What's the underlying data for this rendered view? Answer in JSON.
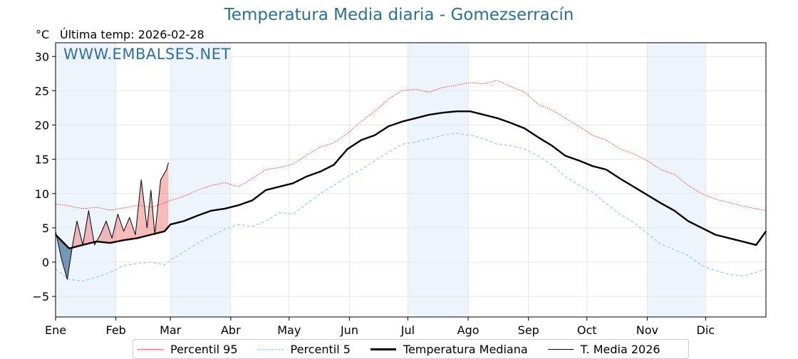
{
  "header": {
    "title": "Temperatura Media diaria - Gomezserracín",
    "unit": "°C",
    "last_temp": "Última temp: 2026-02-28",
    "watermark": "WWW.EMBALSES.NET"
  },
  "legend": {
    "p95": "Percentil 95",
    "p5": "Percentil 5",
    "median": "Temperatura Mediana",
    "current": "T. Media 2026"
  },
  "colors": {
    "p95": "#e53030",
    "p5": "#9ccfe3",
    "median": "#000000",
    "current": "#000000",
    "above_fill": "#f08080",
    "below_fill": "#4a7aa0",
    "band_light": "#eef4fb"
  },
  "chart_data": {
    "type": "line",
    "xlabel": "",
    "ylabel": "°C",
    "ylim": [
      -8,
      32
    ],
    "y_ticks": [
      -5,
      0,
      5,
      10,
      15,
      20,
      25,
      30
    ],
    "x_ticks": [
      {
        "label": "Ene",
        "day": 1
      },
      {
        "label": "Feb",
        "day": 32
      },
      {
        "label": "Mar",
        "day": 60
      },
      {
        "label": "Abr",
        "day": 91
      },
      {
        "label": "May",
        "day": 121
      },
      {
        "label": "Jun",
        "day": 152
      },
      {
        "label": "Jul",
        "day": 182
      },
      {
        "label": "Ago",
        "day": 213
      },
      {
        "label": "Sep",
        "day": 244
      },
      {
        "label": "Oct",
        "day": 274
      },
      {
        "label": "Nov",
        "day": 305
      },
      {
        "label": "Dic",
        "day": 335
      }
    ],
    "x_range": [
      1,
      366
    ],
    "grid": true,
    "shaded_months": [
      "Ene",
      "Mar",
      "Jul",
      "Nov"
    ],
    "series": [
      {
        "name": "Percentil 95",
        "style": "dotted",
        "x": [
          1,
          8,
          15,
          22,
          29,
          36,
          43,
          50,
          57,
          60,
          67,
          74,
          81,
          88,
          95,
          102,
          109,
          116,
          123,
          130,
          137,
          144,
          151,
          158,
          165,
          172,
          179,
          186,
          193,
          200,
          207,
          214,
          221,
          228,
          235,
          242,
          249,
          256,
          263,
          270,
          277,
          284,
          291,
          298,
          305,
          312,
          319,
          326,
          333,
          340,
          347,
          354,
          361,
          366
        ],
        "y": [
          8.5,
          8.2,
          7.8,
          8.0,
          7.6,
          7.9,
          8.3,
          8.0,
          8.6,
          9.0,
          9.6,
          10.5,
          11.2,
          11.6,
          11.0,
          12.2,
          13.5,
          13.8,
          14.3,
          15.6,
          16.8,
          17.4,
          18.8,
          20.5,
          22.0,
          23.8,
          25.0,
          25.2,
          24.8,
          25.5,
          25.8,
          26.2,
          26.0,
          26.5,
          25.6,
          24.8,
          23.0,
          22.2,
          21.0,
          19.8,
          18.5,
          17.8,
          16.5,
          15.8,
          14.8,
          13.5,
          12.8,
          11.2,
          10.0,
          9.2,
          8.7,
          8.2,
          7.8,
          7.5
        ]
      },
      {
        "name": "Percentil 5",
        "style": "dashed",
        "x": [
          1,
          8,
          15,
          22,
          29,
          36,
          43,
          50,
          57,
          60,
          67,
          74,
          81,
          88,
          95,
          102,
          109,
          116,
          123,
          130,
          137,
          144,
          151,
          158,
          165,
          172,
          179,
          186,
          193,
          200,
          207,
          214,
          221,
          228,
          235,
          242,
          249,
          256,
          263,
          270,
          277,
          284,
          291,
          298,
          305,
          312,
          319,
          326,
          333,
          340,
          347,
          354,
          361,
          366
        ],
        "y": [
          -1.0,
          -2.5,
          -2.8,
          -2.2,
          -1.5,
          -0.5,
          -0.2,
          0.0,
          -0.4,
          0.3,
          1.5,
          2.8,
          3.8,
          4.8,
          5.5,
          5.2,
          6.0,
          7.2,
          7.0,
          8.5,
          10.0,
          11.2,
          12.5,
          13.5,
          14.8,
          16.0,
          17.2,
          17.5,
          18.0,
          18.5,
          18.8,
          18.5,
          18.0,
          17.2,
          17.0,
          16.5,
          15.5,
          14.2,
          12.5,
          11.2,
          10.2,
          8.5,
          7.0,
          5.8,
          4.2,
          2.6,
          1.8,
          1.0,
          -0.5,
          -1.2,
          -1.8,
          -2.0,
          -1.5,
          -1.0
        ]
      },
      {
        "name": "Temperatura Mediana",
        "style": "solid-thick",
        "x": [
          1,
          8,
          15,
          22,
          29,
          36,
          43,
          50,
          57,
          60,
          67,
          74,
          81,
          88,
          95,
          102,
          109,
          116,
          123,
          130,
          137,
          144,
          151,
          158,
          165,
          172,
          179,
          186,
          193,
          200,
          207,
          214,
          221,
          228,
          235,
          242,
          249,
          256,
          263,
          270,
          277,
          284,
          291,
          298,
          305,
          312,
          319,
          326,
          333,
          340,
          347,
          354,
          361,
          366
        ],
        "y": [
          4.0,
          2.0,
          2.5,
          3.0,
          2.8,
          3.2,
          3.5,
          4.0,
          4.5,
          5.5,
          6.0,
          6.8,
          7.5,
          7.8,
          8.3,
          9.0,
          10.5,
          11.0,
          11.5,
          12.5,
          13.2,
          14.2,
          16.5,
          17.8,
          18.5,
          19.8,
          20.5,
          21.0,
          21.5,
          21.8,
          22.0,
          22.0,
          21.5,
          21.0,
          20.3,
          19.5,
          18.2,
          17.0,
          15.5,
          14.8,
          14.0,
          13.5,
          12.2,
          11.0,
          9.8,
          8.6,
          7.5,
          6.0,
          5.0,
          4.0,
          3.5,
          3.0,
          2.5,
          4.5
        ]
      },
      {
        "name": "T. Media 2026",
        "style": "solid-thin",
        "x": [
          1,
          4,
          7,
          10,
          12,
          15,
          18,
          21,
          24,
          27,
          30,
          33,
          36,
          39,
          42,
          45,
          48,
          50,
          52,
          55,
          58,
          59
        ],
        "y": [
          4.5,
          0.5,
          -2.5,
          3.0,
          6.0,
          2.5,
          7.5,
          2.5,
          4.0,
          6.0,
          3.5,
          7.0,
          4.5,
          6.5,
          4.0,
          12.0,
          5.0,
          10.5,
          4.0,
          12.0,
          13.5,
          14.5
        ]
      }
    ]
  }
}
